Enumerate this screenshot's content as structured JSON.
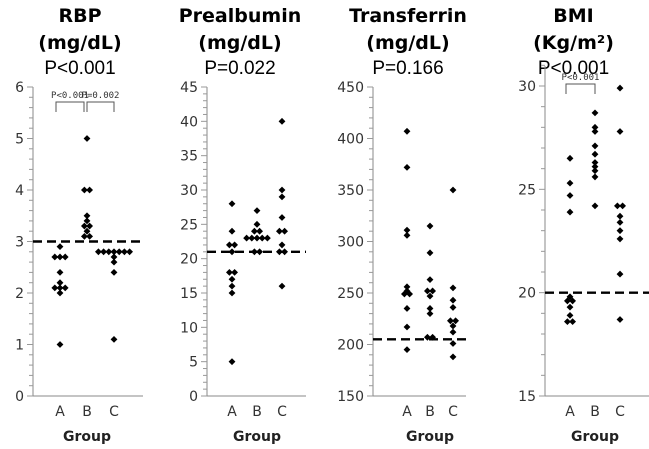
{
  "chart_data": [
    {
      "type": "scatter",
      "title": "RBP",
      "unit": "(mg/dL)",
      "p_value": "P<0.001",
      "xlabel": "Group",
      "ylabel": "",
      "categories": [
        "A",
        "B",
        "C"
      ],
      "ylim": [
        0,
        6
      ],
      "yticks": [
        0,
        1,
        2,
        3,
        4,
        5,
        6
      ],
      "minor_ticks_per_major": 5,
      "reference_line": 3.0,
      "grid": false,
      "series": [
        {
          "name": "A",
          "values": [
            2.9,
            2.7,
            2.7,
            2.7,
            2.4,
            2.2,
            2.1,
            2.1,
            2.1,
            2.0,
            1.0
          ]
        },
        {
          "name": "B",
          "values": [
            5.0,
            4.0,
            4.0,
            3.5,
            3.4,
            3.3,
            3.3,
            3.2,
            3.1,
            3.1
          ]
        },
        {
          "name": "C",
          "values": [
            2.8,
            2.8,
            2.8,
            2.8,
            2.8,
            2.8,
            2.8,
            2.7,
            2.6,
            2.4,
            1.1
          ]
        }
      ],
      "comparisons": [
        {
          "groups": [
            "A",
            "B"
          ],
          "label": "P<0.001"
        },
        {
          "groups": [
            "B",
            "C"
          ],
          "label": "P=0.002"
        }
      ]
    },
    {
      "type": "scatter",
      "title": "Prealbumin",
      "unit": "(mg/dL)",
      "p_value": "P=0.022",
      "xlabel": "Group",
      "ylabel": "",
      "categories": [
        "A",
        "B",
        "C"
      ],
      "ylim": [
        0,
        45
      ],
      "yticks": [
        0,
        5,
        10,
        15,
        20,
        25,
        30,
        35,
        40,
        45
      ],
      "minor_ticks_per_major": 5,
      "reference_line": 21,
      "grid": false,
      "series": [
        {
          "name": "A",
          "values": [
            28,
            24,
            22,
            22,
            21,
            18,
            18,
            17,
            16,
            15,
            5
          ]
        },
        {
          "name": "B",
          "values": [
            27,
            25,
            24,
            24,
            23,
            23,
            23,
            23,
            23,
            21,
            21
          ]
        },
        {
          "name": "C",
          "values": [
            40,
            30,
            29,
            26,
            24,
            24,
            22,
            21,
            21,
            16
          ]
        }
      ],
      "comparisons": []
    },
    {
      "type": "scatter",
      "title": "Transferrin",
      "unit": "(mg/dL)",
      "p_value": "P=0.166",
      "xlabel": "Group",
      "ylabel": "",
      "categories": [
        "A",
        "B",
        "C"
      ],
      "ylim": [
        150,
        450
      ],
      "yticks": [
        150,
        200,
        250,
        300,
        350,
        400,
        450
      ],
      "minor_ticks_per_major": 5,
      "reference_line": 205,
      "grid": false,
      "series": [
        {
          "name": "A",
          "values": [
            407,
            372,
            311,
            306,
            256,
            252,
            249,
            249,
            235,
            217,
            195
          ]
        },
        {
          "name": "B",
          "values": [
            315,
            289,
            263,
            252,
            252,
            247,
            235,
            230,
            207,
            206
          ]
        },
        {
          "name": "C",
          "values": [
            350,
            255,
            243,
            236,
            223,
            223,
            218,
            212,
            201,
            188
          ]
        }
      ],
      "comparisons": []
    },
    {
      "type": "scatter",
      "title": "BMI",
      "unit": "(Kg/m²)",
      "p_value": "P<0.001",
      "xlabel": "Group",
      "ylabel": "",
      "categories": [
        "A",
        "B",
        "C"
      ],
      "ylim": [
        15,
        31
      ],
      "yticks": [
        15,
        20,
        25,
        30
      ],
      "minor_ticks_per_major": 5,
      "reference_line": 20,
      "grid": false,
      "series": [
        {
          "name": "A",
          "values": [
            26.5,
            25.3,
            24.7,
            23.9,
            19.8,
            19.6,
            19.5,
            19.3,
            18.9,
            18.6,
            18.5
          ]
        },
        {
          "name": "B",
          "values": [
            28.7,
            28.0,
            27.8,
            27.1,
            26.7,
            26.3,
            26.1,
            25.9,
            25.6,
            24.2
          ]
        },
        {
          "name": "C",
          "values": [
            29.9,
            27.8,
            24.2,
            24.1,
            23.7,
            23.4,
            23.0,
            22.6,
            20.9,
            18.7
          ]
        }
      ],
      "comparisons": [
        {
          "groups": [
            "A",
            "B"
          ],
          "label": "P<0.001"
        }
      ]
    }
  ]
}
